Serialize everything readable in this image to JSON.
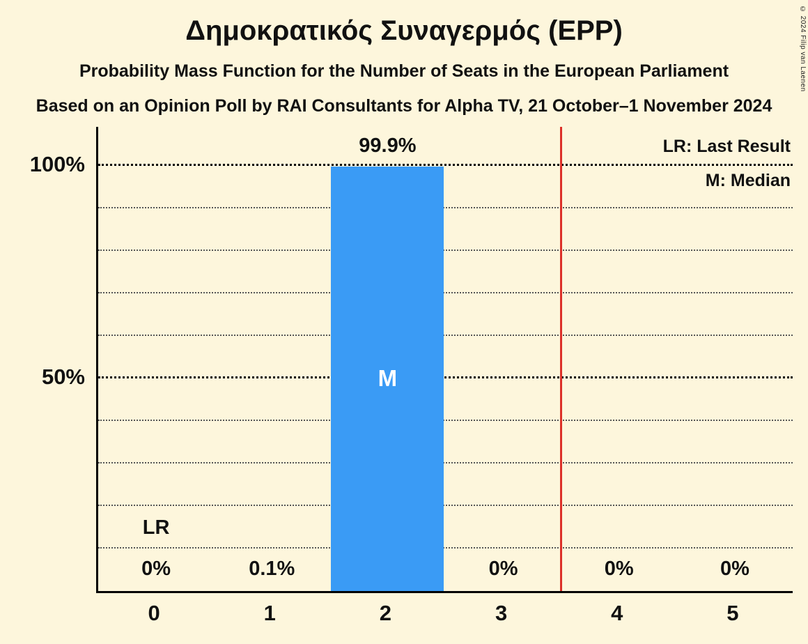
{
  "title": "Δημοκρατικός Συναγερμός (EPP)",
  "subtitle1": "Probability Mass Function for the Number of Seats in the European Parliament",
  "subtitle2": "Based on an Opinion Poll by RAI Consultants for Alpha TV, 21 October–1 November 2024",
  "copyright": "© 2024 Filip van Laenen",
  "legend": {
    "lr": "LR: Last Result",
    "m": "M: Median"
  },
  "colors": {
    "background": "#fdf6dc",
    "bar": "#3a9bf5",
    "last_result_line": "#dc3028",
    "text": "#111111"
  },
  "chart_data": {
    "type": "bar",
    "categories": [
      "0",
      "1",
      "2",
      "3",
      "4",
      "5"
    ],
    "values": [
      0,
      0.1,
      99.9,
      0,
      0,
      0
    ],
    "value_labels": [
      "0%",
      "0.1%",
      "99.9%",
      "0%",
      "0%",
      "0%"
    ],
    "median_category": "2",
    "median_label": "M",
    "last_result_category": "0",
    "last_result_label": "LR",
    "last_result_line_x": 3.5,
    "ylim": [
      0,
      100
    ],
    "yticks": [
      {
        "label": "100%",
        "value": 100
      },
      {
        "label": "50%",
        "value": 50
      }
    ],
    "gridlines_percent": [
      10,
      20,
      30,
      40,
      50,
      60,
      70,
      80,
      90,
      100
    ],
    "grid": true,
    "legend_position": "top-right"
  }
}
